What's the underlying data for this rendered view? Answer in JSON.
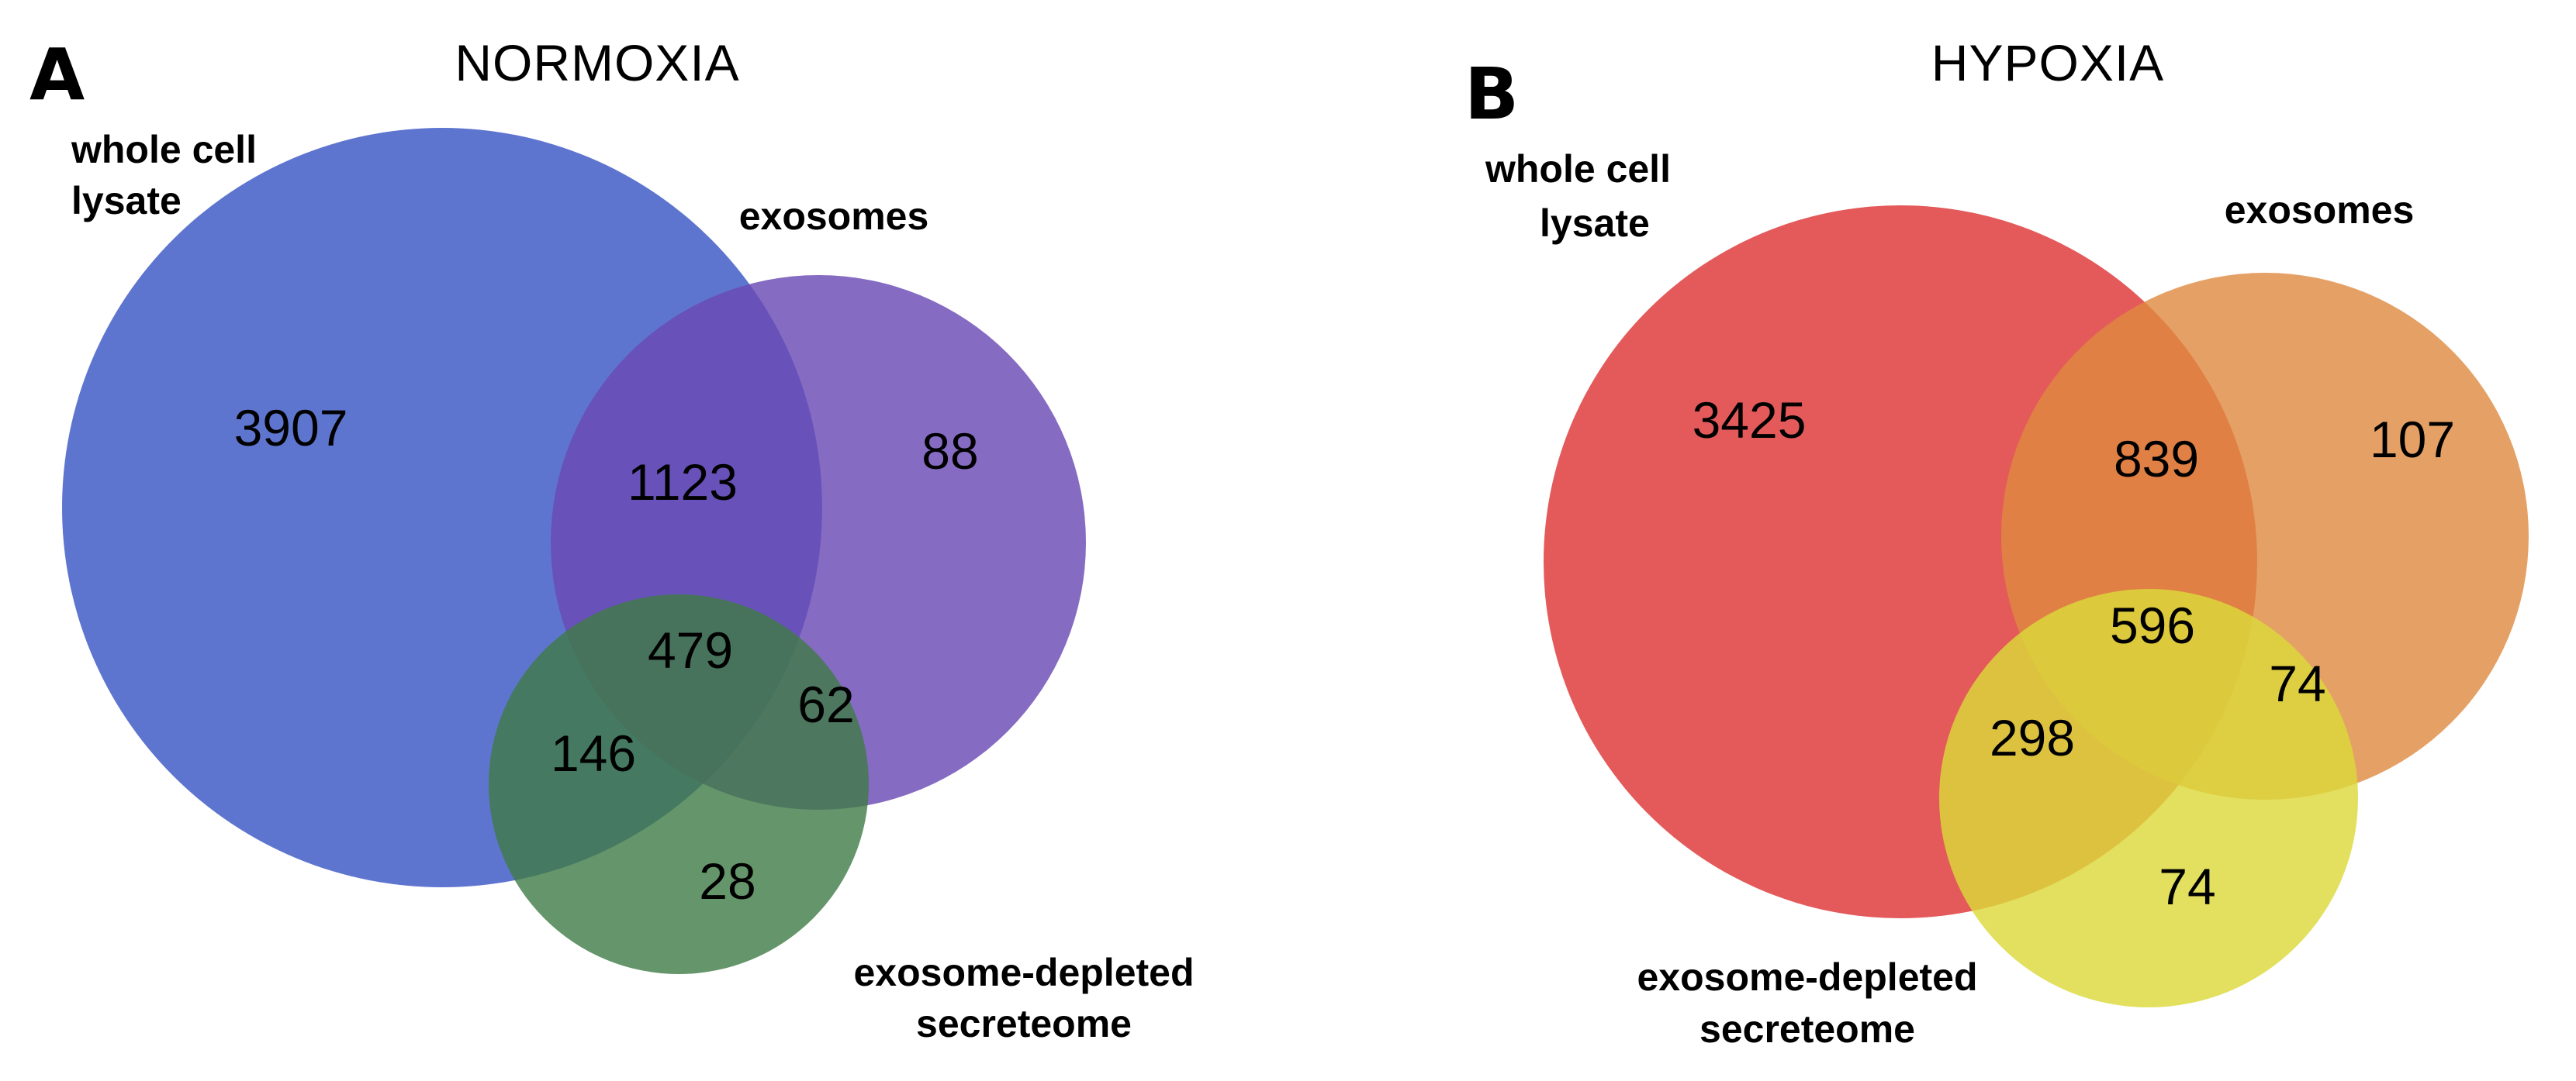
{
  "panels": [
    {
      "letter": "A",
      "title": "NORMOXIA",
      "sets": {
        "lysate": {
          "label_line1": "whole cell",
          "label_line2": "lysate",
          "color": "#3a57c4"
        },
        "exosomes": {
          "label": "exosomes",
          "color": "#6a4ab4"
        },
        "depleted": {
          "label_line1": "exosome-depleted",
          "label_line2": "secreteome",
          "color": "#3e7a45"
        }
      },
      "counts": {
        "lysate_only": "3907",
        "lysate_exosomes": "1123",
        "exosomes_only": "88",
        "all_three": "479",
        "exosomes_depleted": "62",
        "lysate_depleted": "146",
        "depleted_only": "28"
      }
    },
    {
      "letter": "B",
      "title": "HYPOXIA",
      "sets": {
        "lysate": {
          "label_line1": "whole cell",
          "label_line2": "lysate",
          "color": "#df3d3d"
        },
        "exosomes": {
          "label": "exosomes",
          "color": "#df8a3f"
        },
        "depleted": {
          "label_line1": "exosome-depleted",
          "label_line2": "secreteome",
          "color": "#dcd93a"
        }
      },
      "counts": {
        "lysate_only": "3425",
        "lysate_exosomes": "839",
        "exosomes_only": "107",
        "all_three": "596",
        "exosomes_depleted": "74",
        "lysate_depleted": "298",
        "depleted_only": "74"
      }
    }
  ]
}
